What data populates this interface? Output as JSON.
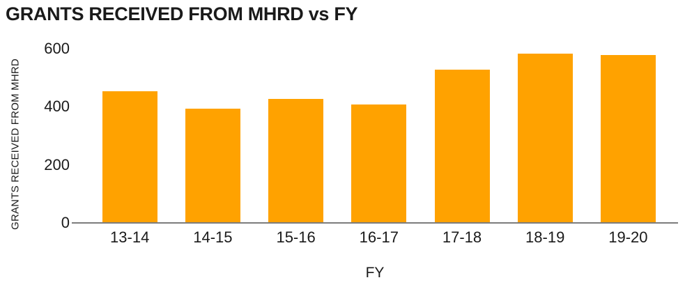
{
  "title": "GRANTS RECEIVED FROM MHRD vs FY",
  "colors": {
    "bar": "#FFA200",
    "axis_line": "#7C7C7C",
    "text": "#1A1A1A",
    "background": "#FFFFFF"
  },
  "chart_data": {
    "type": "bar",
    "title": "GRANTS RECEIVED FROM MHRD vs FY",
    "xlabel": "FY",
    "ylabel": "GRANTS RECEIVED FROM MHRD",
    "categories": [
      "13-14",
      "14-15",
      "15-16",
      "16-17",
      "17-18",
      "18-19",
      "19-20"
    ],
    "values": [
      450,
      390,
      425,
      405,
      525,
      580,
      575
    ],
    "yticks": [
      0,
      200,
      400,
      600
    ],
    "ylim": [
      0,
      600
    ],
    "grid": false,
    "legend": "none",
    "bar_color": "#FFA200"
  }
}
